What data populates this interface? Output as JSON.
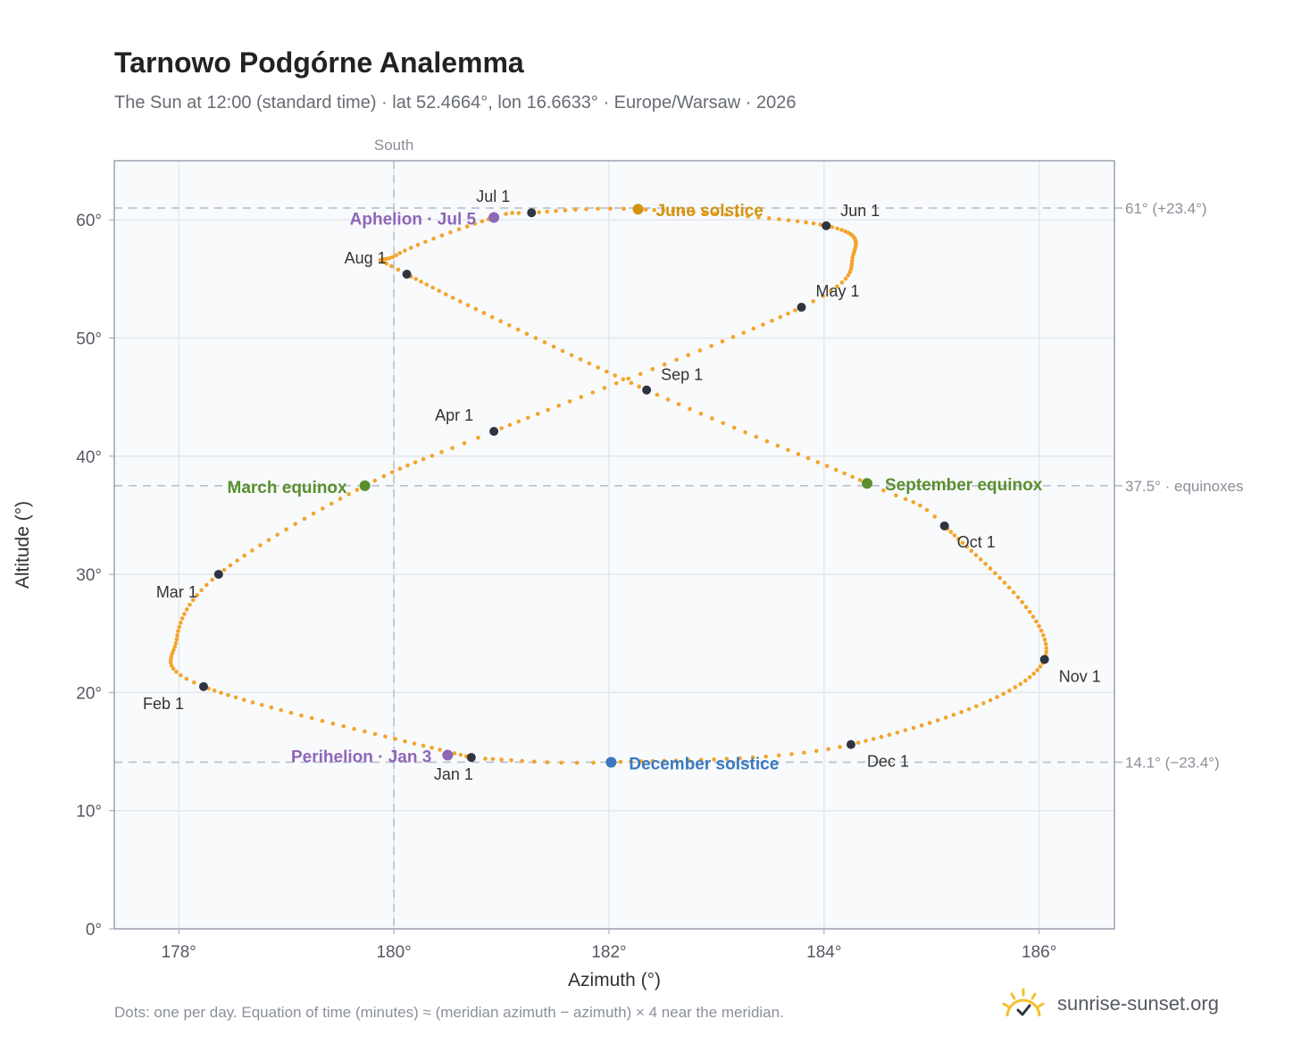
{
  "header": {
    "title": "Tarnowo Podgórne Analemma",
    "subtitle": "The Sun at 12:00 (standard time) · lat 52.4664°, lon 16.6633° · Europe/Warsaw · 2026"
  },
  "footer": {
    "note": "Dots: one per day. Equation of time (minutes) ≈ (meridian azimuth − azimuth) × 4 near the meridian.",
    "brand": "sunrise-sunset.org",
    "brand_icon": "sun-icon"
  },
  "colors": {
    "path": "#f3a52c",
    "month_dot": "#2e3440",
    "aphelion": "#8e66b8",
    "june_solstice": "#d4930f",
    "equinox": "#5a8f2e",
    "december_solstice": "#3a78c2",
    "reference_line": "#b9c0ca",
    "plot_background": "#f8fafc",
    "frame": "#9aa3b0"
  },
  "chart_data": {
    "type": "scatter",
    "title": "Tarnowo Podgórne Analemma",
    "xlabel": "Azimuth (°)",
    "ylabel": "Altitude (°)",
    "xlim": [
      177.4,
      186.7
    ],
    "ylim": [
      0,
      65
    ],
    "x_ticks": [
      178,
      180,
      182,
      184,
      186
    ],
    "x_tick_labels": [
      "178°",
      "180°",
      "182°",
      "184°",
      "186°"
    ],
    "y_ticks": [
      0,
      10,
      20,
      30,
      40,
      50,
      60
    ],
    "y_tick_labels": [
      "0°",
      "10°",
      "20°",
      "30°",
      "40°",
      "50°",
      "60°"
    ],
    "grid": true,
    "meridian": {
      "azimuth": 180,
      "label": "South"
    },
    "reference_lines": [
      {
        "altitude": 61.0,
        "label": "61° (+23.4°)"
      },
      {
        "altitude": 37.5,
        "label": "37.5° · equinoxes"
      },
      {
        "altitude": 14.1,
        "label": "14.1° (−23.4°)"
      }
    ],
    "daily_path_anchors": [
      {
        "day": 1,
        "azimuth": 180.72,
        "altitude": 14.5
      },
      {
        "day": 32,
        "azimuth": 178.23,
        "altitude": 20.5
      },
      {
        "day": 46,
        "azimuth": 177.98,
        "altitude": 24.5
      },
      {
        "day": 60,
        "azimuth": 178.37,
        "altitude": 30.0
      },
      {
        "day": 78,
        "azimuth": 179.73,
        "altitude": 37.5
      },
      {
        "day": 91,
        "azimuth": 180.93,
        "altitude": 42.1
      },
      {
        "day": 121,
        "azimuth": 183.79,
        "altitude": 52.6
      },
      {
        "day": 135,
        "azimuth": 184.27,
        "altitude": 57.0
      },
      {
        "day": 152,
        "azimuth": 184.02,
        "altitude": 59.5
      },
      {
        "day": 172,
        "azimuth": 182.27,
        "altitude": 60.9
      },
      {
        "day": 182,
        "azimuth": 181.28,
        "altitude": 60.6
      },
      {
        "day": 186,
        "azimuth": 180.93,
        "altitude": 60.2
      },
      {
        "day": 200,
        "azimuth": 180.02,
        "altitude": 57.0
      },
      {
        "day": 213,
        "azimuth": 180.12,
        "altitude": 55.4
      },
      {
        "day": 244,
        "azimuth": 182.35,
        "altitude": 45.6
      },
      {
        "day": 266,
        "azimuth": 184.4,
        "altitude": 37.7
      },
      {
        "day": 274,
        "azimuth": 185.12,
        "altitude": 34.1
      },
      {
        "day": 305,
        "azimuth": 186.05,
        "altitude": 22.8
      },
      {
        "day": 335,
        "azimuth": 184.25,
        "altitude": 15.6
      },
      {
        "day": 355,
        "azimuth": 182.02,
        "altitude": 14.1
      },
      {
        "day": 365,
        "azimuth": 180.85,
        "altitude": 14.4
      }
    ],
    "month_markers": [
      {
        "label": "Jan 1",
        "azimuth": 180.72,
        "altitude": 14.5
      },
      {
        "label": "Feb 1",
        "azimuth": 178.23,
        "altitude": 20.5
      },
      {
        "label": "Mar 1",
        "azimuth": 178.37,
        "altitude": 30.0
      },
      {
        "label": "Apr 1",
        "azimuth": 180.93,
        "altitude": 42.1
      },
      {
        "label": "May 1",
        "azimuth": 183.79,
        "altitude": 52.6
      },
      {
        "label": "Jun 1",
        "azimuth": 184.02,
        "altitude": 59.5
      },
      {
        "label": "Jul 1",
        "azimuth": 181.28,
        "altitude": 60.6
      },
      {
        "label": "Aug 1",
        "azimuth": 180.12,
        "altitude": 55.4
      },
      {
        "label": "Sep 1",
        "azimuth": 182.35,
        "altitude": 45.6
      },
      {
        "label": "Oct 1",
        "azimuth": 185.12,
        "altitude": 34.1
      },
      {
        "label": "Nov 1",
        "azimuth": 186.05,
        "altitude": 22.8
      },
      {
        "label": "Dec 1",
        "azimuth": 184.25,
        "altitude": 15.6
      }
    ],
    "events": [
      {
        "label": "Perihelion · Jan 3",
        "azimuth": 180.5,
        "altitude": 14.7,
        "color_key": "aphelion"
      },
      {
        "label": "March equinox",
        "azimuth": 179.73,
        "altitude": 37.5,
        "color_key": "equinox"
      },
      {
        "label": "June solstice",
        "azimuth": 182.27,
        "altitude": 60.9,
        "color_key": "june_solstice"
      },
      {
        "label": "Aphelion · Jul 5",
        "azimuth": 180.93,
        "altitude": 60.2,
        "color_key": "aphelion"
      },
      {
        "label": "September equinox",
        "azimuth": 184.4,
        "altitude": 37.7,
        "color_key": "equinox"
      },
      {
        "label": "December solstice",
        "azimuth": 182.02,
        "altitude": 14.1,
        "color_key": "december_solstice"
      }
    ]
  }
}
